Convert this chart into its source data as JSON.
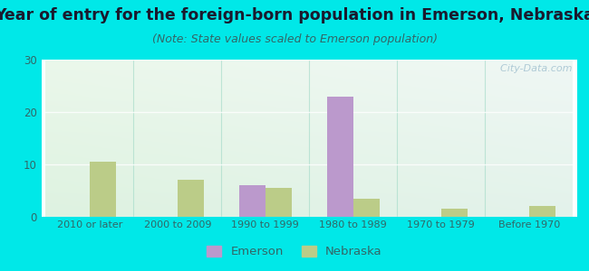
{
  "title": "Year of entry for the foreign-born population in Emerson, Nebraska",
  "subtitle": "(Note: State values scaled to Emerson population)",
  "categories": [
    "2010 or later",
    "2000 to 2009",
    "1990 to 1999",
    "1980 to 1989",
    "1970 to 1979",
    "Before 1970"
  ],
  "emerson_values": [
    0,
    0,
    6.0,
    23.0,
    0,
    0
  ],
  "nebraska_values": [
    10.5,
    7.0,
    5.5,
    3.5,
    1.5,
    2.0
  ],
  "emerson_color": "#bb99cc",
  "nebraska_color": "#bbcc88",
  "background_color": "#00e8e8",
  "ylim": [
    0,
    30
  ],
  "yticks": [
    0,
    10,
    20,
    30
  ],
  "bar_width": 0.3,
  "title_fontsize": 12.5,
  "subtitle_fontsize": 9,
  "title_color": "#1a1a2e",
  "subtitle_color": "#336666",
  "tick_color": "#336666",
  "watermark": "  City-Data.com"
}
